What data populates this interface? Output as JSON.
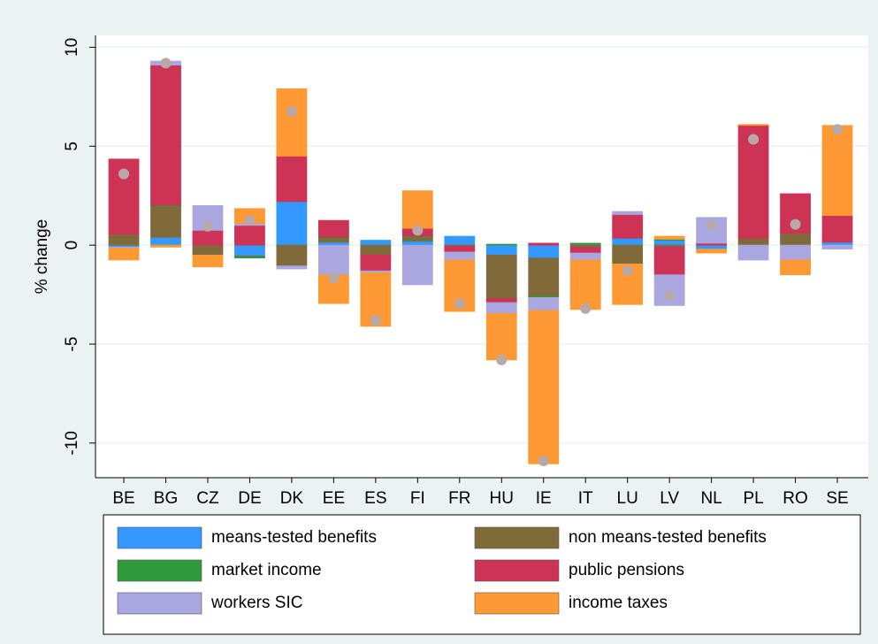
{
  "chart_data": {
    "type": "bar",
    "stacked": true,
    "ylabel": "% change",
    "categories": [
      "BE",
      "BG",
      "CZ",
      "DE",
      "DK",
      "EE",
      "ES",
      "FI",
      "FR",
      "HU",
      "IE",
      "IT",
      "LU",
      "LV",
      "NL",
      "PL",
      "RO",
      "SE"
    ],
    "series": [
      {
        "name": "means-tested benefits",
        "color": "#3399ff",
        "values": [
          -0.1,
          0.4,
          0,
          -0.55,
          2.2,
          0.15,
          0.25,
          0.2,
          0.45,
          -0.5,
          -0.65,
          0.05,
          0.35,
          0.25,
          -0.2,
          0,
          0,
          0.15
        ]
      },
      {
        "name": "non means-tested benefits",
        "color": "#806a3a",
        "values": [
          0.55,
          1.55,
          -0.5,
          -0.05,
          -1.05,
          0.2,
          -0.5,
          0.2,
          -0.05,
          -2.2,
          -1.95,
          -0.1,
          -0.95,
          -0.1,
          0,
          0.35,
          0.6,
          0
        ]
      },
      {
        "name": "market income",
        "color": "#2e9a3c",
        "values": [
          0,
          0.05,
          0,
          -0.05,
          0,
          0.05,
          0,
          0.05,
          0,
          0.05,
          -0.05,
          0.05,
          0,
          0.05,
          0,
          0,
          0,
          0
        ]
      },
      {
        "name": "public pensions",
        "color": "#cc3355",
        "values": [
          3.8,
          7.1,
          0.75,
          1.0,
          2.3,
          0.85,
          -0.8,
          0.4,
          -0.3,
          -0.2,
          0.1,
          -0.3,
          1.2,
          -1.4,
          0.1,
          5.7,
          2.0,
          1.35
        ]
      },
      {
        "name": "workers SIC",
        "color": "#aaa7e0",
        "values": [
          -0.05,
          0.2,
          1.25,
          0.1,
          -0.15,
          -1.5,
          -0.1,
          -2.0,
          -0.4,
          -0.55,
          -0.65,
          -0.35,
          0.15,
          -1.55,
          1.3,
          -0.75,
          -0.75,
          -0.2
        ]
      },
      {
        "name": "income taxes",
        "color": "#ff9933",
        "values": [
          -0.6,
          -0.1,
          -0.6,
          0.75,
          3.4,
          -1.45,
          -2.7,
          1.9,
          -2.6,
          -2.35,
          -7.75,
          -2.5,
          -2.05,
          0.15,
          -0.2,
          0.05,
          -0.75,
          4.55
        ]
      }
    ],
    "totals": [
      3.6,
      9.2,
      0.95,
      1.25,
      6.75,
      -1.65,
      -3.8,
      0.75,
      -2.95,
      -5.8,
      -10.9,
      -3.2,
      -1.3,
      -2.55,
      1.0,
      5.35,
      1.05,
      5.85
    ],
    "totals_color": "#b9a8a8",
    "ylim": [
      -11.75,
      10.6
    ],
    "yticks": [
      10,
      5,
      0,
      -5,
      -10
    ],
    "grid": true
  }
}
